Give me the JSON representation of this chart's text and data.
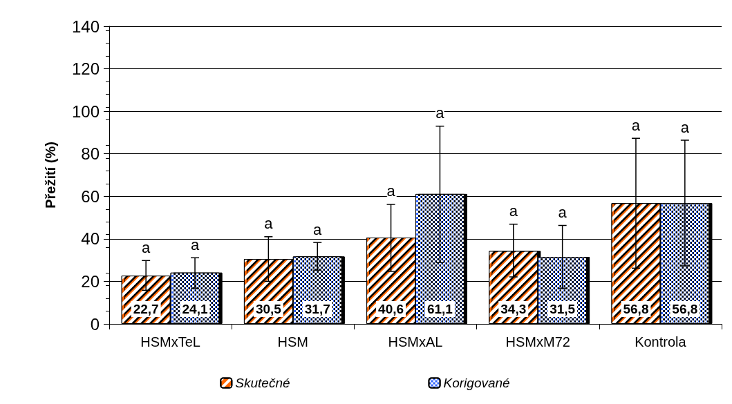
{
  "chart_data": {
    "type": "bar",
    "ylabel": "Přežití (%)",
    "categories": [
      "HSMxTeL",
      "HSM",
      "HSMxAL",
      "HSMxM72",
      "Kontrola"
    ],
    "series": [
      {
        "name": "Skutečné",
        "color": "#ff6600",
        "values": [
          22.7,
          30.5,
          40.6,
          34.3,
          56.8
        ],
        "value_labels": [
          "22,7",
          "30,5",
          "40,6",
          "34,3",
          "56,8"
        ],
        "errors": [
          [
            15.8,
            29.8
          ],
          [
            20,
            41
          ],
          [
            24.7,
            56.2
          ],
          [
            22.1,
            46.9
          ],
          [
            26.2,
            87.3
          ]
        ]
      },
      {
        "name": "Korigované",
        "color": "#3366ff",
        "values": [
          24.1,
          31.7,
          61.1,
          31.5,
          56.8
        ],
        "value_labels": [
          "24,1",
          "31,7",
          "61,1",
          "31,5",
          "56,8"
        ],
        "errors": [
          [
            16.8,
            31.1
          ],
          [
            25.3,
            38.3
          ],
          [
            28.9,
            93
          ],
          [
            16.8,
            46.3
          ],
          [
            27.3,
            86.4
          ]
        ]
      }
    ],
    "annotations": [
      "a",
      "a",
      "a",
      "a",
      "a",
      "a",
      "a",
      "a",
      "a",
      "a"
    ],
    "ylim": [
      0,
      140
    ],
    "yticks": [
      0,
      20,
      40,
      60,
      80,
      100,
      120,
      140
    ],
    "grid": "y",
    "legend": "bottom"
  }
}
